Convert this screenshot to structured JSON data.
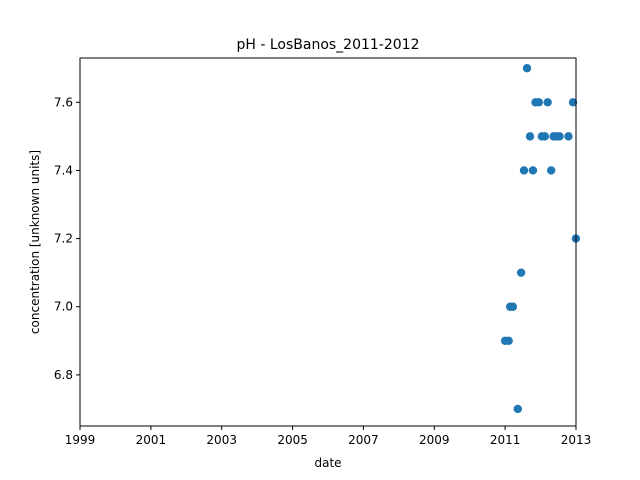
{
  "chart_data": {
    "type": "scatter",
    "title": "pH - LosBanos_2011-2012",
    "xlabel": "date",
    "ylabel": "concentration [unknown units]",
    "xlim": [
      "1999-01-01",
      "2013-01-01"
    ],
    "ylim": [
      6.65,
      7.73
    ],
    "x_ticks": [
      "1999",
      "2001",
      "2003",
      "2005",
      "2007",
      "2009",
      "2011",
      "2013"
    ],
    "y_ticks": [
      "6.8",
      "7.0",
      "7.2",
      "7.4",
      "7.6"
    ],
    "grid": false,
    "marker_color": "#1f77b4",
    "points": [
      {
        "x": "2011-01-01",
        "y": 6.9
      },
      {
        "x": "2011-02-07",
        "y": 6.9
      },
      {
        "x": "2011-02-22",
        "y": 7.0
      },
      {
        "x": "2011-03-22",
        "y": 7.0
      },
      {
        "x": "2011-05-12",
        "y": 6.7
      },
      {
        "x": "2011-06-15",
        "y": 7.1
      },
      {
        "x": "2011-07-15",
        "y": 7.4
      },
      {
        "x": "2011-08-15",
        "y": 7.7
      },
      {
        "x": "2011-09-15",
        "y": 7.5
      },
      {
        "x": "2011-10-15",
        "y": 7.4
      },
      {
        "x": "2011-11-10",
        "y": 7.6
      },
      {
        "x": "2011-12-15",
        "y": 7.6
      },
      {
        "x": "2012-01-15",
        "y": 7.5
      },
      {
        "x": "2012-02-15",
        "y": 7.5
      },
      {
        "x": "2012-03-15",
        "y": 7.6
      },
      {
        "x": "2012-04-20",
        "y": 7.4
      },
      {
        "x": "2012-05-15",
        "y": 7.5
      },
      {
        "x": "2012-06-15",
        "y": 7.5
      },
      {
        "x": "2012-07-15",
        "y": 7.5
      },
      {
        "x": "2012-10-15",
        "y": 7.5
      },
      {
        "x": "2012-12-01",
        "y": 7.6
      },
      {
        "x": "2012-12-31",
        "y": 7.2
      }
    ]
  }
}
